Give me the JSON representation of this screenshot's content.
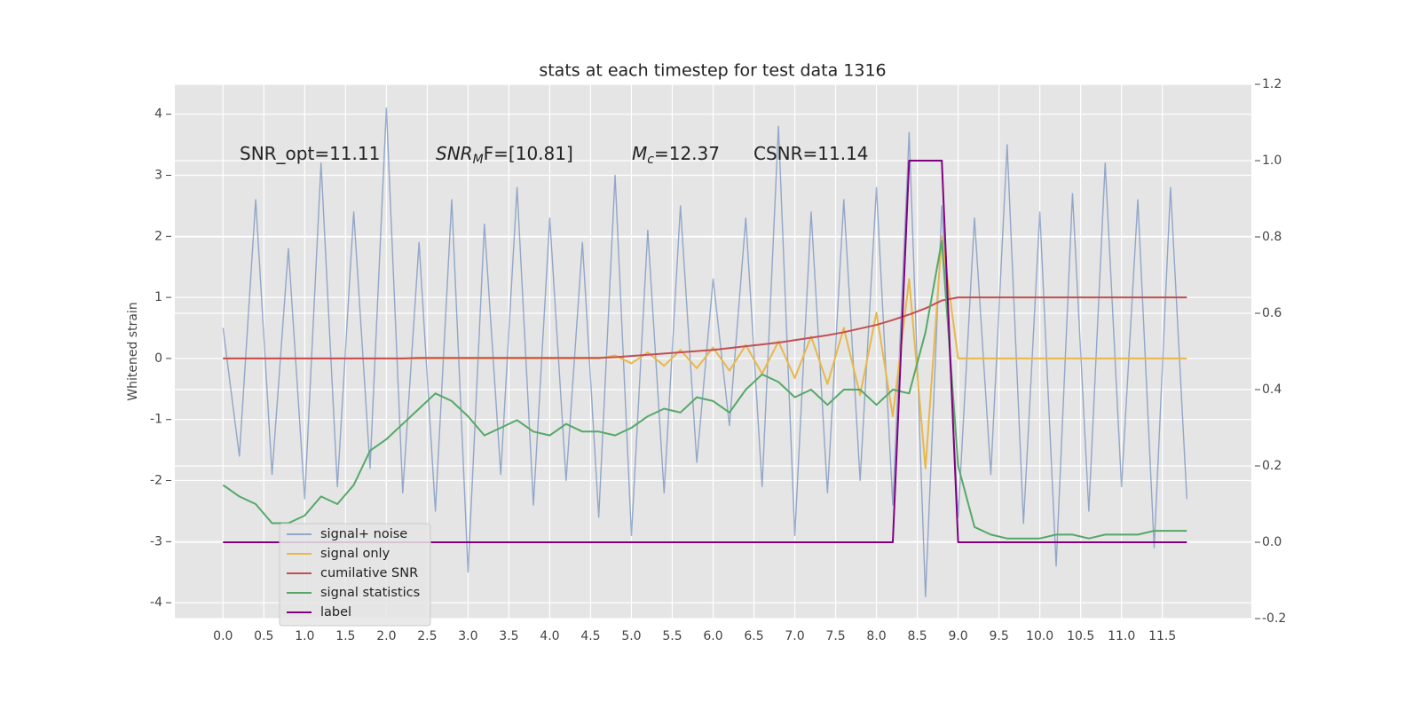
{
  "chart_data": {
    "type": "line",
    "title": "stats at each timestep for test data 1316",
    "y_label": "Whitened strain",
    "annotations": [
      {
        "main": "SNR_opt=11.11"
      },
      {
        "main": "SNR",
        "sub": "M",
        "rest": "F=[10.81]"
      },
      {
        "main": "M",
        "sub": "c",
        "rest": "=12.37"
      },
      {
        "main": "CSNR=11.14"
      }
    ],
    "grid": true,
    "legend": "lower left",
    "xlim": [
      -0.59,
      12.59
    ],
    "xticks": [
      {
        "value": 0,
        "label": "0.0"
      },
      0.5,
      {
        "value": 1,
        "label": "1.0"
      },
      1.5,
      {
        "value": 2,
        "label": "2.0"
      },
      2.5,
      {
        "value": 3,
        "label": "3.0"
      },
      3.5,
      {
        "value": 4,
        "label": "4.0"
      },
      4.5,
      {
        "value": 5,
        "label": "5.0"
      },
      5.5,
      {
        "value": 6,
        "label": "6.0"
      },
      6.5,
      {
        "value": 7,
        "label": "7.0"
      },
      7.5,
      {
        "value": 8,
        "label": "8.0"
      },
      8.5,
      {
        "value": 9,
        "label": "9.0"
      },
      9.5,
      {
        "value": 10,
        "label": "10.0"
      },
      10.5,
      {
        "value": 11,
        "label": "11.0"
      },
      11.5
    ],
    "ylim": [
      -4.26,
      4.49
    ],
    "yticks": [
      -4,
      -3,
      -2,
      -1,
      0,
      1,
      2,
      3,
      4
    ],
    "y2lim": [
      -0.2,
      1.2
    ],
    "y2ticks": [
      -0.2,
      {
        "value": 0,
        "label": "0.0"
      },
      0.2,
      0.4,
      0.6,
      0.8,
      {
        "value": 1,
        "label": "1.0"
      },
      1.2
    ],
    "x": [
      0.0,
      0.2,
      0.4,
      0.6,
      0.8,
      1.0,
      1.2,
      1.4,
      1.6,
      1.8,
      2.0,
      2.2,
      2.4,
      2.6,
      2.8,
      3.0,
      3.2,
      3.4,
      3.6,
      3.8,
      4.0,
      4.2,
      4.4,
      4.6,
      4.8,
      5.0,
      5.2,
      5.4,
      5.6,
      5.8,
      6.0,
      6.2,
      6.4,
      6.6,
      6.8,
      7.0,
      7.2,
      7.4,
      7.6,
      7.8,
      8.0,
      8.2,
      8.4,
      8.6,
      8.8,
      9.0,
      9.2,
      9.4,
      9.6,
      9.8,
      10.0,
      10.2,
      10.4,
      10.6,
      10.8,
      11.0,
      11.2,
      11.4,
      11.6,
      11.8
    ],
    "series": [
      {
        "name": "signal+ noise",
        "color": "#4c72b0",
        "values": [
          0.5,
          -1.6,
          2.6,
          -1.9,
          1.8,
          -2.3,
          3.2,
          -2.1,
          2.4,
          -1.8,
          4.1,
          -2.2,
          1.9,
          -2.5,
          2.6,
          -3.5,
          2.2,
          -1.9,
          2.8,
          -2.4,
          2.3,
          -2.0,
          1.9,
          -2.6,
          3.0,
          -2.9,
          2.1,
          -2.2,
          2.5,
          -1.7,
          1.3,
          -1.1,
          2.3,
          -2.1,
          3.8,
          -2.9,
          2.4,
          -2.2,
          2.6,
          -2.0,
          2.8,
          -2.4,
          3.7,
          -3.9,
          2.5,
          -2.6,
          2.3,
          -1.9,
          3.5,
          -2.7,
          2.4,
          -3.4,
          2.7,
          -2.5,
          3.2,
          -2.1,
          2.6,
          -3.1,
          2.8,
          -2.3
        ]
      },
      {
        "name": "signal only",
        "color": "#e8b84a",
        "values": [
          0,
          0,
          0,
          0,
          0,
          0,
          0,
          0,
          0,
          0,
          0,
          0,
          0,
          0,
          0,
          0,
          0,
          0,
          0,
          0,
          0,
          0,
          0,
          0,
          0.05,
          -0.08,
          0.1,
          -0.12,
          0.14,
          -0.16,
          0.18,
          -0.2,
          0.22,
          -0.25,
          0.28,
          -0.32,
          0.36,
          -0.42,
          0.5,
          -0.6,
          0.75,
          -0.95,
          1.3,
          -1.8,
          2.0,
          0,
          0,
          0,
          0,
          0,
          0,
          0,
          0,
          0,
          0,
          0,
          0,
          0,
          0,
          0
        ]
      },
      {
        "name": "cumilative SNR",
        "color": "#c44e52",
        "values": [
          0,
          0,
          0,
          0,
          0,
          0,
          0,
          0,
          0,
          0,
          0,
          0,
          0.01,
          0.01,
          0.01,
          0.01,
          0.01,
          0.01,
          0.01,
          0.01,
          0.01,
          0.01,
          0.01,
          0.01,
          0.02,
          0.04,
          0.06,
          0.08,
          0.1,
          0.12,
          0.14,
          0.17,
          0.2,
          0.23,
          0.26,
          0.3,
          0.34,
          0.38,
          0.43,
          0.49,
          0.55,
          0.63,
          0.72,
          0.82,
          0.95,
          1.0,
          1.0,
          1.0,
          1.0,
          1.0,
          1.0,
          1.0,
          1.0,
          1.0,
          1.0,
          1.0,
          1.0,
          1.0,
          1.0,
          1.0
        ]
      },
      {
        "name": "signal statistics",
        "color": "#55a868",
        "axis": "y2",
        "values": [
          0.15,
          0.12,
          0.1,
          0.05,
          0.05,
          0.07,
          0.12,
          0.1,
          0.15,
          0.24,
          0.27,
          0.31,
          0.35,
          0.39,
          0.37,
          0.33,
          0.28,
          0.3,
          0.32,
          0.29,
          0.28,
          0.31,
          0.29,
          0.29,
          0.28,
          0.3,
          0.33,
          0.35,
          0.34,
          0.38,
          0.37,
          0.34,
          0.4,
          0.44,
          0.42,
          0.38,
          0.4,
          0.36,
          0.4,
          0.4,
          0.36,
          0.4,
          0.39,
          0.55,
          0.79,
          0.2,
          0.04,
          0.02,
          0.01,
          0.01,
          0.01,
          0.02,
          0.02,
          0.01,
          0.02,
          0.02,
          0.02,
          0.03,
          0.03,
          0.03
        ]
      },
      {
        "name": "label",
        "color": "#800080",
        "axis": "y2",
        "values": [
          0,
          0,
          0,
          0,
          0,
          0,
          0,
          0,
          0,
          0,
          0,
          0,
          0,
          0,
          0,
          0,
          0,
          0,
          0,
          0,
          0,
          0,
          0,
          0,
          0,
          0,
          0,
          0,
          0,
          0,
          0,
          0,
          0,
          0,
          0,
          0,
          0,
          0,
          0,
          0,
          0,
          0,
          1,
          1,
          1,
          0,
          0,
          0,
          0,
          0,
          0,
          0,
          0,
          0,
          0,
          0,
          0,
          0,
          0,
          0
        ]
      }
    ]
  }
}
